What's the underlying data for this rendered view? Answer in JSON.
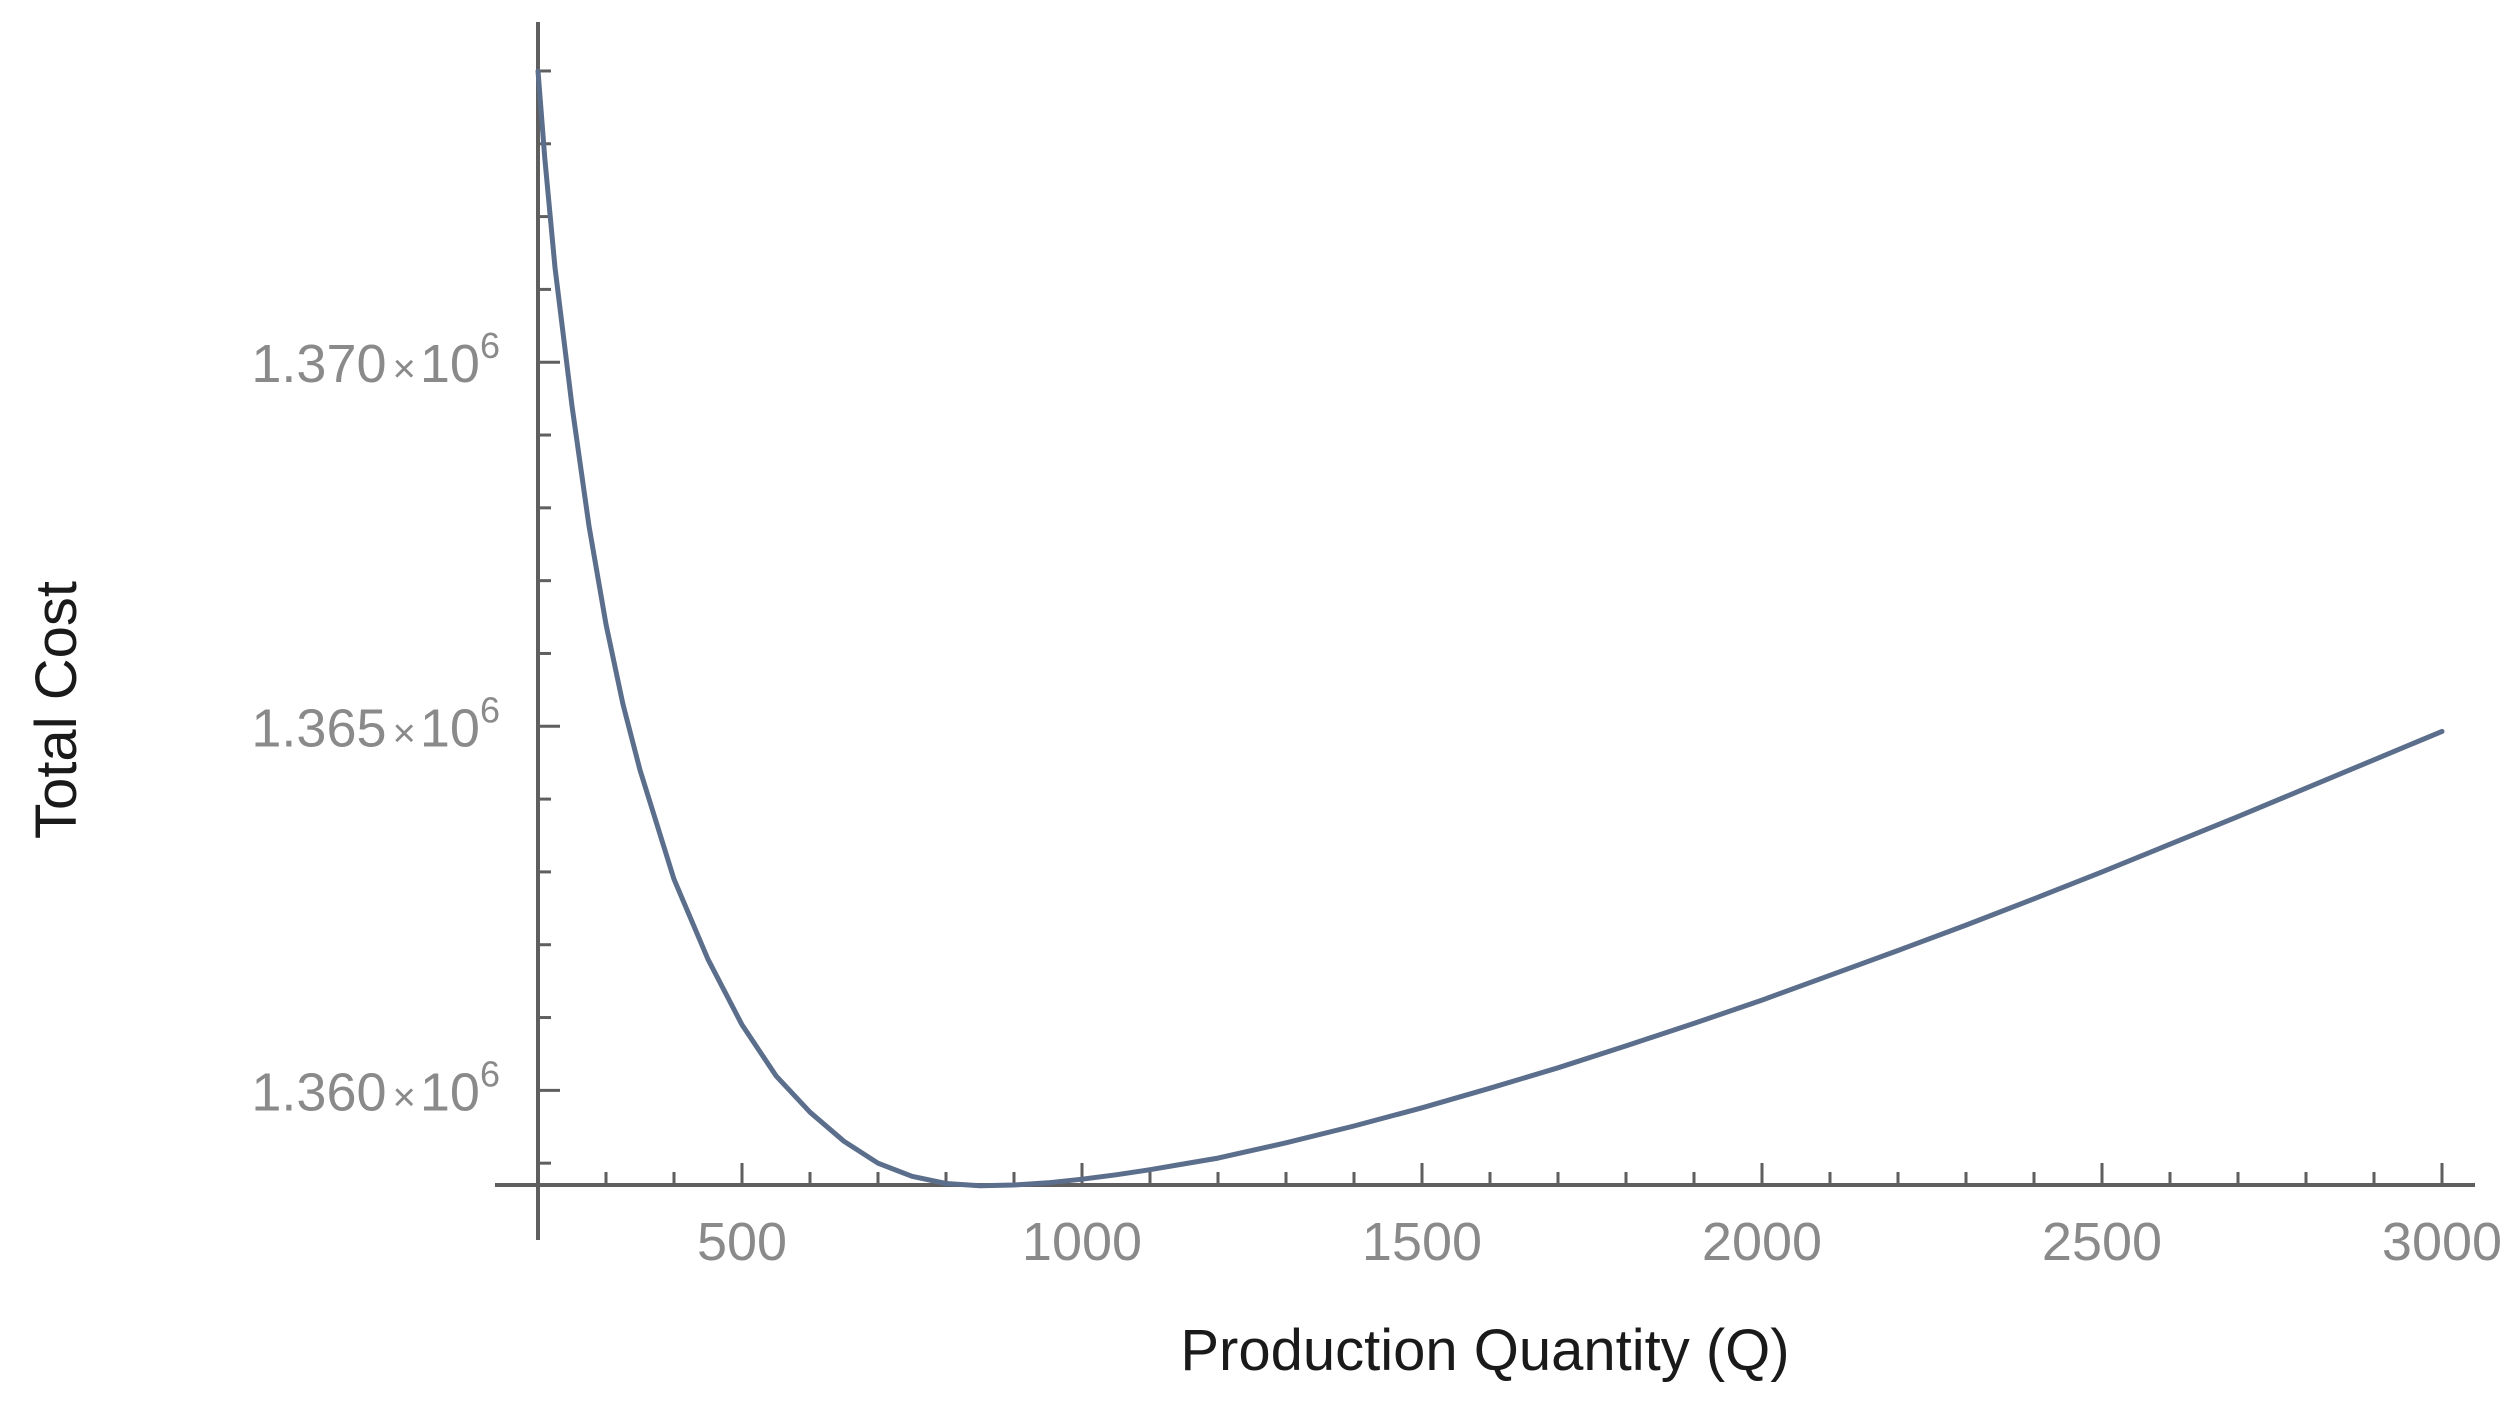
{
  "chart_data": {
    "type": "line",
    "title": "",
    "xlabel": "Production Quantity (Q)",
    "ylabel": "Total Cost",
    "xlim": [
      200,
      3000
    ],
    "ylim": [
      1358700,
      1374700
    ],
    "grid": false,
    "x_ticks": [
      {
        "value": 500,
        "label": "500"
      },
      {
        "value": 1000,
        "label": "1000"
      },
      {
        "value": 1500,
        "label": "1500"
      },
      {
        "value": 2000,
        "label": "2000"
      },
      {
        "value": 2500,
        "label": "2500"
      },
      {
        "value": 3000,
        "label": "3000"
      }
    ],
    "y_ticks": [
      {
        "value": 1360000,
        "mantissa": "1.360",
        "times": "×",
        "base": "10",
        "exponent": "6"
      },
      {
        "value": 1365000,
        "mantissa": "1.365",
        "times": "×",
        "base": "10",
        "exponent": "6"
      },
      {
        "value": 1370000,
        "mantissa": "1.370",
        "times": "×",
        "base": "10",
        "exponent": "6"
      }
    ],
    "series": [
      {
        "color": "#5b6e8c",
        "x": [
          200,
          210,
          225,
          250,
          275,
          300,
          325,
          350,
          400,
          450,
          500,
          550,
          600,
          650,
          700,
          750,
          800,
          850,
          900,
          950,
          1000,
          1050,
          1100,
          1150,
          1200,
          1300,
          1400,
          1500,
          1600,
          1700,
          1800,
          1900,
          2000,
          2100,
          2200,
          2300,
          2400,
          2500,
          2600,
          2700,
          2800,
          2900,
          3000
        ],
        "y": [
          1374000,
          1372800,
          1371300,
          1369400,
          1367750,
          1366400,
          1365300,
          1364400,
          1362900,
          1361800,
          1360900,
          1360200,
          1359700,
          1359300,
          1359000,
          1358820,
          1358720,
          1358690,
          1358700,
          1358730,
          1358780,
          1358840,
          1358910,
          1358990,
          1359070,
          1359280,
          1359510,
          1359760,
          1360030,
          1360310,
          1360610,
          1360920,
          1361240,
          1361580,
          1361920,
          1362270,
          1362630,
          1363000,
          1363380,
          1363760,
          1364150,
          1364540,
          1364930
        ]
      }
    ]
  }
}
